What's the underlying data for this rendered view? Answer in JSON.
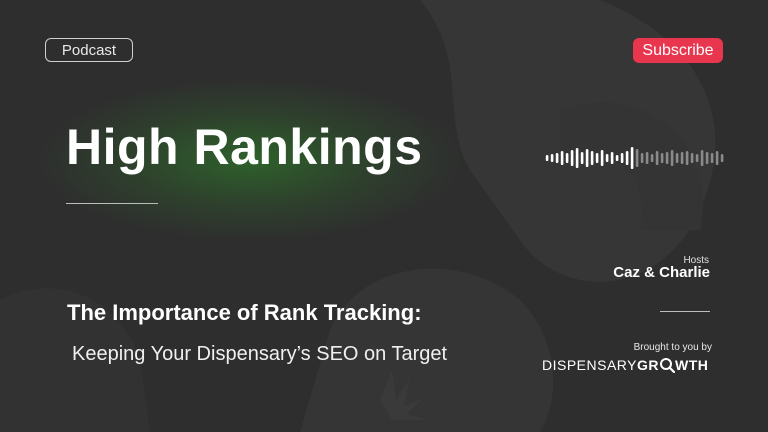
{
  "tag": {
    "label": "Podcast"
  },
  "subscribe": {
    "label": "Subscribe"
  },
  "show": {
    "title": "High Rankings"
  },
  "hosts": {
    "label": "Hosts",
    "names": "Caz & Charlie"
  },
  "episode": {
    "title": "The Importance of Rank Tracking:",
    "subtitle": "Keeping Your Dispensary’s SEO on Target"
  },
  "sponsor": {
    "intro": "Brought to you by",
    "brand_light": "DISPENSARY",
    "brand_bold_1": "GR",
    "brand_bold_2": "WTH"
  },
  "audio": {
    "icon": "audio-waveform-icon",
    "progress": 0.5
  },
  "colors": {
    "accent": "#e8364f",
    "glow": "#2e8c28",
    "background": "#2e2e2e"
  }
}
